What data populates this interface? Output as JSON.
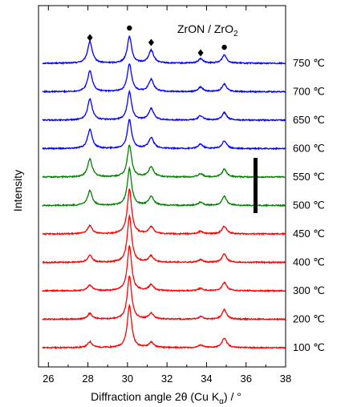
{
  "chart_data": {
    "type": "line",
    "xlabel": "Diffraction angle 2θ (Cu Kα) / °",
    "xlabel_parts": {
      "main": "Diffraction angle 2θ (Cu K",
      "sub": "α",
      "tail": ") / °"
    },
    "ylabel": "Intensity",
    "xlim": [
      25.5,
      38
    ],
    "xticks": [
      26,
      28,
      30,
      32,
      34,
      36,
      38
    ],
    "yticks_shown": false,
    "annotation": {
      "text_parts": {
        "main": "ZrON / ZrO",
        "sub": "2"
      },
      "text": "ZrON / ZrO2",
      "markers": [
        {
          "x": 28.1,
          "symbol": "diamond",
          "phase": "ZrO2"
        },
        {
          "x": 30.1,
          "symbol": "circle",
          "phase": "ZrON"
        },
        {
          "x": 31.2,
          "symbol": "diamond",
          "phase": "ZrO2"
        },
        {
          "x": 33.7,
          "symbol": "diamond",
          "phase": "ZrO2"
        },
        {
          "x": 34.9,
          "symbol": "circle",
          "phase": "ZrON"
        }
      ]
    },
    "scale_bar": {
      "present": true,
      "position": "right"
    },
    "peaks_deg": [
      28.1,
      30.1,
      31.2,
      33.7,
      34.9
    ],
    "series": [
      {
        "name": "750 ℃",
        "color": "#0000ff",
        "peaks": [
          0.34,
          0.42,
          0.2,
          0.07,
          0.13
        ]
      },
      {
        "name": "700 ℃",
        "color": "#0000ff",
        "peaks": [
          0.33,
          0.43,
          0.19,
          0.07,
          0.12
        ]
      },
      {
        "name": "650 ℃",
        "color": "#0000ff",
        "peaks": [
          0.33,
          0.44,
          0.18,
          0.07,
          0.12
        ]
      },
      {
        "name": "600 ℃",
        "color": "#0000ff",
        "peaks": [
          0.3,
          0.45,
          0.17,
          0.07,
          0.12
        ]
      },
      {
        "name": "550 ℃",
        "color": "#008000",
        "peaks": [
          0.28,
          0.5,
          0.16,
          0.05,
          0.12
        ]
      },
      {
        "name": "500 ℃",
        "color": "#008000",
        "peaks": [
          0.23,
          0.58,
          0.14,
          0.05,
          0.14
        ]
      },
      {
        "name": "450 ℃",
        "color": "#ff0000",
        "peaks": [
          0.13,
          0.7,
          0.11,
          0.04,
          0.12
        ]
      },
      {
        "name": "400 ℃",
        "color": "#ff0000",
        "peaks": [
          0.11,
          0.72,
          0.1,
          0.04,
          0.13
        ]
      },
      {
        "name": "300 ℃",
        "color": "#ff0000",
        "peaks": [
          0.09,
          0.7,
          0.09,
          0.04,
          0.13
        ]
      },
      {
        "name": "200 ℃",
        "color": "#ff0000",
        "peaks": [
          0.09,
          0.68,
          0.09,
          0.04,
          0.15
        ]
      },
      {
        "name": "100 ℃",
        "color": "#ff0000",
        "peaks": [
          0.09,
          0.66,
          0.08,
          0.04,
          0.15
        ]
      }
    ]
  }
}
